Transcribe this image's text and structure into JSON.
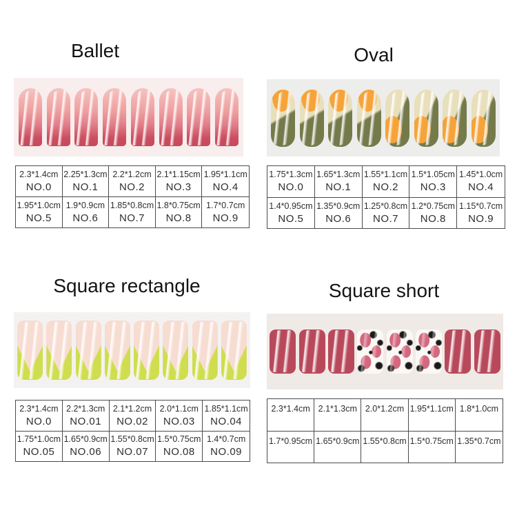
{
  "sections": [
    {
      "id": "ballet",
      "title": "Ballet",
      "nail_shape": "coffin",
      "nail_count": 8,
      "cells": [
        {
          "size": "2.3*1.4cm",
          "no": "NO.0"
        },
        {
          "size": "2.25*1.3cm",
          "no": "NO.1"
        },
        {
          "size": "2.2*1.2cm",
          "no": "NO.2"
        },
        {
          "size": "2.1*1.15cm",
          "no": "NO.3"
        },
        {
          "size": "1.95*1.1cm",
          "no": "NO.4"
        },
        {
          "size": "1.95*1.0cm",
          "no": "NO.5"
        },
        {
          "size": "1.9*0.9cm",
          "no": "NO.6"
        },
        {
          "size": "1.85*0.8cm",
          "no": "NO.7"
        },
        {
          "size": "1.8*0.75cm",
          "no": "NO.8"
        },
        {
          "size": "1.7*0.7cm",
          "no": "NO.9"
        }
      ]
    },
    {
      "id": "oval",
      "title": "Oval",
      "nail_shape": "oval",
      "nail_count": 8,
      "cells": [
        {
          "size": "1.75*1.3cm",
          "no": "NO.0"
        },
        {
          "size": "1.65*1.3cm",
          "no": "NO.1"
        },
        {
          "size": "1.55*1.1cm",
          "no": "NO.2"
        },
        {
          "size": "1.5*1.05cm",
          "no": "NO.3"
        },
        {
          "size": "1.45*1.0cm",
          "no": "NO.4"
        },
        {
          "size": "1.4*0.95cm",
          "no": "NO.5"
        },
        {
          "size": "1.35*0.9cm",
          "no": "NO.6"
        },
        {
          "size": "1.25*0.8cm",
          "no": "NO.7"
        },
        {
          "size": "1.2*0.75cm",
          "no": "NO.8"
        },
        {
          "size": "1.15*0.7cm",
          "no": "NO.9"
        }
      ]
    },
    {
      "id": "square-rectangle",
      "title": "Square rectangle",
      "nail_shape": "square-long",
      "nail_count": 8,
      "cells": [
        {
          "size": "2.3*1.4cm",
          "no": "NO.0"
        },
        {
          "size": "2.2*1.3cm",
          "no": "NO.01"
        },
        {
          "size": "2.1*1.2cm",
          "no": "NO.02"
        },
        {
          "size": "2.0*1.1cm",
          "no": "NO.03"
        },
        {
          "size": "1.85*1.1cm",
          "no": "NO.04"
        },
        {
          "size": "1.75*1.0cm",
          "no": "NO.05"
        },
        {
          "size": "1.65*0.9cm",
          "no": "NO.06"
        },
        {
          "size": "1.55*0.8cm",
          "no": "NO.07"
        },
        {
          "size": "1.5*0.75cm",
          "no": "NO.08"
        },
        {
          "size": "1.4*0.7cm",
          "no": "NO.09"
        }
      ]
    },
    {
      "id": "square-short",
      "title": "Square short",
      "nail_shape": "square-short",
      "nail_count": 8,
      "cells": [
        {
          "size": "2.3*1.4cm"
        },
        {
          "size": "2.1*1.3cm"
        },
        {
          "size": "2.0*1.2cm"
        },
        {
          "size": "1.95*1.1cm"
        },
        {
          "size": "1.8*1.0cm"
        },
        {
          "size": "1.7*0.95cm"
        },
        {
          "size": "1.65*0.9cm"
        },
        {
          "size": "1.55*0.8cm"
        },
        {
          "size": "1.5*0.75cm"
        },
        {
          "size": "1.35*0.7cm"
        }
      ]
    }
  ],
  "colors": {
    "ballet_gradient_top": "#f5c3c0",
    "ballet_gradient_mid": "#efa1a1",
    "ballet_gradient_tip": "#c64a5a",
    "ballet_photo_bg": "#f8eeee",
    "oval_orange": "#f6a339",
    "oval_olive": "#757a4b",
    "oval_cream": "#e8dfbb",
    "oval_photo_bg": "#ededeb",
    "rect_nude_pink": "#f7dcd2",
    "rect_tip_green": "#cfdd4f",
    "rect_photo_bg": "#f3f2f0",
    "short_red": "#b8495b",
    "leopard_spot_pink": "#d4687f",
    "leopard_black": "#1a1a1a",
    "leopard_base": "#fbf8f4",
    "short_photo_bg": "#f0eae6",
    "table_border": "#4a4a4a",
    "text": "#2e2e2e"
  }
}
